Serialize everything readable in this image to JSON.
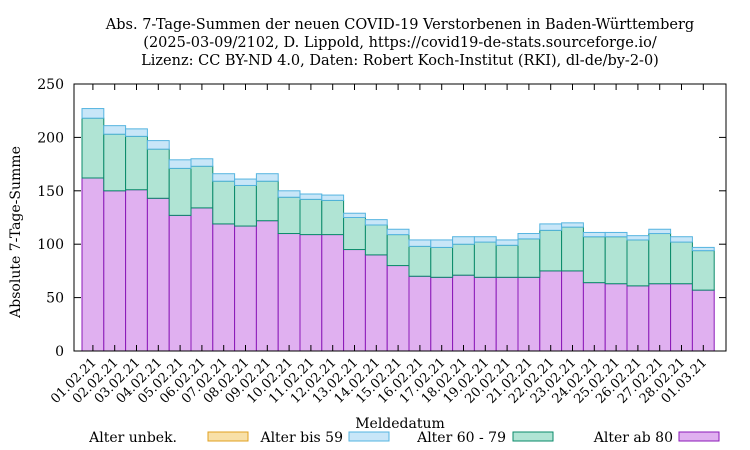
{
  "chart_data": {
    "type": "bar",
    "stacked": true,
    "title": [
      "Abs. 7-Tage-Summen der neuen COVID-19 Verstorbenen in Baden-Württemberg",
      "(2025-03-09/2102, D. Lippold, https://covid19-de-stats.sourceforge.io/",
      "Lizenz: CC BY-ND 4.0, Daten: Robert Koch-Institut (RKI), dl-de/by-2-0)"
    ],
    "xlabel": "Meldedatum",
    "ylabel": "Absolute 7-Tage-Summe",
    "ylim": [
      0,
      250
    ],
    "yticks": [
      0,
      50,
      100,
      150,
      200,
      250
    ],
    "grid": false,
    "legend_position": "bottom",
    "categories": [
      "01.02.21",
      "02.02.21",
      "03.02.21",
      "04.02.21",
      "05.02.21",
      "06.02.21",
      "07.02.21",
      "08.02.21",
      "09.02.21",
      "10.02.21",
      "11.02.21",
      "12.02.21",
      "13.02.21",
      "14.02.21",
      "15.02.21",
      "16.02.21",
      "17.02.21",
      "18.02.21",
      "19.02.21",
      "20.02.21",
      "21.02.21",
      "22.02.21",
      "23.02.21",
      "24.02.21",
      "25.02.21",
      "26.02.21",
      "27.02.21",
      "28.02.21",
      "01.03.21"
    ],
    "series": [
      {
        "name": "Alter ab 80",
        "fill": "#e0b0f0",
        "stroke": "#8b1ab8",
        "values": [
          162,
          150,
          151,
          143,
          127,
          134,
          119,
          117,
          122,
          110,
          109,
          109,
          95,
          90,
          80,
          70,
          69,
          71,
          69,
          69,
          69,
          75,
          75,
          64,
          63,
          61,
          63,
          63,
          57
        ]
      },
      {
        "name": "Alter 60 - 79",
        "fill": "#b0e4d4",
        "stroke": "#0a8a6a",
        "values": [
          56,
          53,
          50,
          46,
          44,
          39,
          40,
          38,
          37,
          34,
          33,
          32,
          30,
          28,
          29,
          28,
          28,
          29,
          33,
          30,
          36,
          38,
          41,
          43,
          44,
          43,
          47,
          39,
          37
        ]
      },
      {
        "name": "Alter bis 59",
        "fill": "#c8e6f8",
        "stroke": "#55b4e0",
        "values": [
          9,
          8,
          7,
          8,
          8,
          7,
          7,
          6,
          7,
          6,
          5,
          5,
          4,
          5,
          5,
          6,
          7,
          7,
          5,
          5,
          5,
          6,
          4,
          4,
          4,
          4,
          4,
          5,
          3
        ]
      },
      {
        "name": "Alter unbek.",
        "fill": "#f8e0a8",
        "stroke": "#e0a020",
        "values": [
          0,
          0,
          0,
          0,
          0,
          0,
          0,
          0,
          0,
          0,
          0,
          0,
          0,
          0,
          0,
          0,
          0,
          0,
          0,
          0,
          0,
          0,
          0,
          0,
          0,
          0,
          0,
          0,
          0
        ]
      }
    ],
    "legend_order": [
      "Alter unbek.",
      "Alter bis 59",
      "Alter 60 - 79",
      "Alter ab 80"
    ]
  }
}
